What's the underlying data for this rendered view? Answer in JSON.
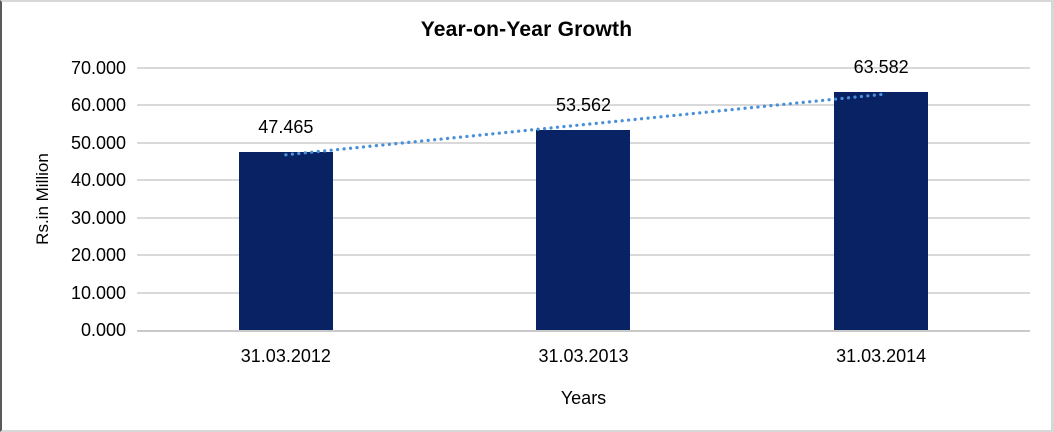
{
  "chart_data": {
    "type": "bar",
    "title": "Year-on-Year Growth",
    "xlabel": "Years",
    "ylabel": "Rs.in Million",
    "categories": [
      "31.03.2012",
      "31.03.2013",
      "31.03.2014"
    ],
    "values": [
      47.465,
      53.562,
      63.582
    ],
    "data_labels": [
      "47.465",
      "53.562",
      "63.582"
    ],
    "ylim": [
      0,
      70
    ],
    "ytick_values": [
      0,
      10,
      20,
      30,
      40,
      50,
      60,
      70
    ],
    "ytick_labels": [
      "0.000",
      "10.000",
      "20.000",
      "30.000",
      "40.000",
      "50.000",
      "60.000",
      "70.000"
    ],
    "grid": true,
    "legend": "none",
    "bar_color": "#082263",
    "gridline_color": "#d9d9d9",
    "axis_line_color": "#c9c9c9",
    "trendline": {
      "type": "linear",
      "style": "dotted",
      "color": "#4a90d9"
    }
  }
}
